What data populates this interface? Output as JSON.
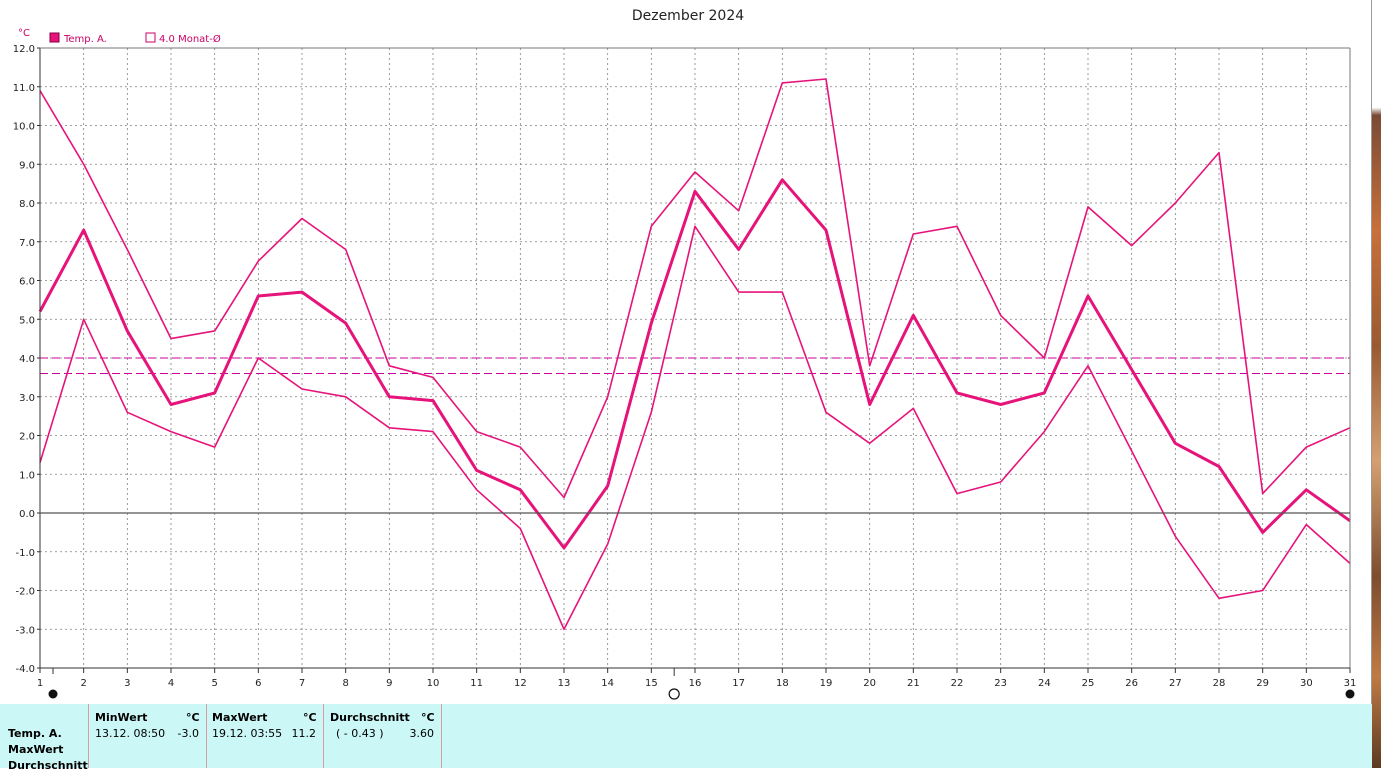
{
  "chart_data": {
    "type": "line",
    "title": "Dezember 2024",
    "ylabel": "°C",
    "ylim": [
      -4.0,
      12.0
    ],
    "yticks": [
      "12.0",
      "11.0",
      "10.0",
      "9.0",
      "8.0",
      "7.0",
      "6.0",
      "5.0",
      "4.0",
      "3.0",
      "2.0",
      "1.0",
      "0.0",
      "-1.0",
      "-2.0",
      "-3.0",
      "-4.0"
    ],
    "x": [
      1,
      2,
      3,
      4,
      5,
      6,
      7,
      8,
      9,
      10,
      11,
      12,
      13,
      14,
      15,
      16,
      17,
      18,
      19,
      20,
      21,
      22,
      23,
      24,
      25,
      26,
      27,
      28,
      29,
      30,
      31
    ],
    "xticks": [
      "1",
      "2",
      "3",
      "4",
      "5",
      "6",
      "7",
      "8",
      "9",
      "10",
      "11",
      "12",
      "13",
      "14",
      "15",
      "16",
      "17",
      "18",
      "19",
      "20",
      "21",
      "22",
      "23",
      "24",
      "25",
      "26",
      "27",
      "28",
      "29",
      "30",
      "31"
    ],
    "grid": true,
    "legend": [
      {
        "label": "Temp. A.",
        "style": "filled"
      },
      {
        "label": "4.0 Monat-Ø",
        "style": "outline"
      }
    ],
    "series": [
      {
        "name": "Temp. A.",
        "role": "mean",
        "color": "#e6147a",
        "values": [
          5.2,
          7.3,
          4.7,
          2.8,
          3.1,
          5.6,
          5.7,
          4.9,
          3.0,
          2.9,
          1.1,
          0.6,
          -0.9,
          0.7,
          4.9,
          8.3,
          6.8,
          8.6,
          7.3,
          2.8,
          5.1,
          3.1,
          2.8,
          3.1,
          5.6,
          3.7,
          1.8,
          1.2,
          -0.5,
          0.6,
          -0.2
        ]
      },
      {
        "role": "max",
        "color": "#e6147a",
        "values": [
          10.9,
          9.0,
          6.8,
          4.5,
          4.7,
          6.5,
          7.6,
          6.8,
          3.8,
          3.5,
          2.1,
          1.7,
          0.4,
          3.0,
          7.4,
          8.8,
          7.8,
          11.1,
          11.2,
          3.8,
          7.2,
          7.4,
          5.1,
          4.0,
          7.9,
          6.9,
          8.0,
          9.3,
          0.5,
          1.7,
          2.2
        ]
      },
      {
        "role": "min",
        "color": "#e6147a",
        "values": [
          1.3,
          5.0,
          2.6,
          2.1,
          1.7,
          4.0,
          3.2,
          3.0,
          2.2,
          2.1,
          0.6,
          -0.4,
          -3.0,
          -0.8,
          2.6,
          7.4,
          5.7,
          5.7,
          2.6,
          1.8,
          2.7,
          0.5,
          0.8,
          2.1,
          3.8,
          1.6,
          -0.6,
          -2.2,
          -2.0,
          -0.3,
          -1.3
        ]
      }
    ],
    "reference_lines": [
      {
        "label": "4.0 Monat-Ø",
        "value": 4.0,
        "color": "#cc0099",
        "style": "dashed"
      },
      {
        "label": "Durchschnitt",
        "value": 3.6,
        "color": "#cc0099",
        "style": "dashed"
      }
    ]
  },
  "stats": {
    "row_labels": [
      "Temp. A.",
      "MaxWert",
      "Durchschnitt"
    ],
    "min": {
      "header": "MinWert",
      "unit": "°C",
      "date": "13.12.  08:50",
      "value": "-3.0"
    },
    "max": {
      "header": "MaxWert",
      "unit": "°C",
      "date": "19.12.  03:55",
      "value": "11.2"
    },
    "avg": {
      "header": "Durchschnitt",
      "unit": "°C",
      "note": "( - 0.43 )",
      "value": "3.60"
    }
  }
}
